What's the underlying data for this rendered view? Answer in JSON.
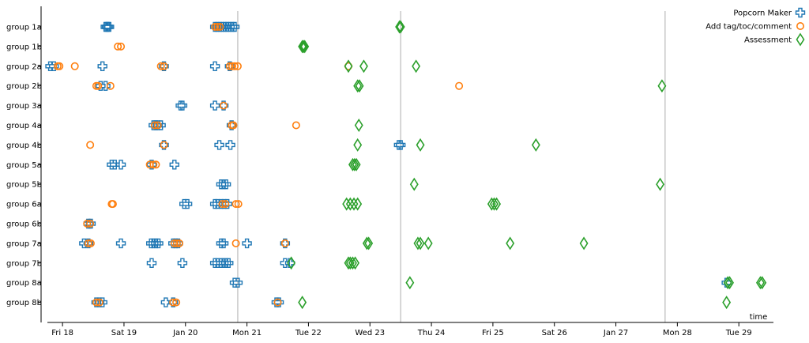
{
  "chart_data": {
    "type": "scatter",
    "xlabel": "time",
    "x_ticks": [
      "Fri 18",
      "Sat 19",
      "Jan 20",
      "Mon 21",
      "Tue 22",
      "Wed 23",
      "Thu 24",
      "Fri 25",
      "Sat 26",
      "Jan 27",
      "Mon 28",
      "Tue 29"
    ],
    "xlim": [
      17.78,
      29.55
    ],
    "reference_lines": [
      20.85,
      23.5,
      27.8
    ],
    "legend_position": "top-right",
    "categories": [
      "group 1a",
      "group 1b",
      "group 2a",
      "group 2b",
      "group 3a",
      "group 4a",
      "group 4b",
      "group 5a",
      "group 5b",
      "group 6a",
      "group 6b",
      "group 7a",
      "group 7b",
      "group 8a",
      "group 8b"
    ],
    "colors": {
      "popcorn": "#1f77b4",
      "comment": "#ff7f0e",
      "assessment": "#2ca02c"
    },
    "series": [
      {
        "name": "Popcorn Maker",
        "marker": "cross-icon",
        "points": {
          "group 1a": [
            18.7,
            18.72,
            18.74,
            18.76,
            20.48,
            20.52,
            20.56,
            20.6,
            20.64,
            20.68,
            20.72,
            20.76,
            20.8
          ],
          "group 2a": [
            17.8,
            17.86,
            18.65,
            19.65,
            20.48,
            20.72
          ],
          "group 2b": [
            18.62,
            18.7
          ],
          "group 3a": [
            19.92,
            19.95,
            20.48,
            20.62
          ],
          "group 4a": [
            19.48,
            19.52,
            19.55,
            19.6,
            20.75
          ],
          "group 4b": [
            19.65,
            20.55,
            20.73,
            23.47,
            23.5
          ],
          "group 5a": [
            18.8,
            18.85,
            18.95,
            19.45,
            19.82
          ],
          "group 5b": [
            20.58,
            20.62,
            20.66
          ],
          "group 6a": [
            19.98,
            20.03,
            20.48,
            20.52,
            20.58,
            20.63,
            20.68
          ],
          "group 6b": [
            18.42,
            18.46
          ],
          "group 7a": [
            18.35,
            18.42,
            18.95,
            19.44,
            19.48,
            19.52,
            19.56,
            19.8,
            19.84,
            19.88,
            20.58,
            20.62,
            21.0,
            21.62
          ],
          "group 7b": [
            19.45,
            19.95,
            20.48,
            20.52,
            20.58,
            20.62,
            20.66,
            20.7,
            21.62,
            21.7
          ],
          "group 8a": [
            20.8,
            20.85,
            28.8
          ],
          "group 8b": [
            18.55,
            18.6,
            18.65,
            19.68,
            19.8,
            21.48,
            21.52
          ]
        }
      },
      {
        "name": "Add tag/toc/comment",
        "marker": "circle-icon",
        "points": {
          "group 1a": [
            20.48,
            20.52,
            20.56
          ],
          "group 1b": [
            18.9,
            18.95
          ],
          "group 2a": [
            17.92,
            17.95,
            18.2,
            19.6,
            19.65,
            20.72,
            20.76,
            20.8,
            20.85,
            22.65
          ],
          "group 2b": [
            18.55,
            18.58,
            18.78,
            24.45
          ],
          "group 3a": [
            20.62
          ],
          "group 4a": [
            19.5,
            19.55,
            20.75,
            20.78,
            21.8
          ],
          "group 4b": [
            18.45,
            19.65
          ],
          "group 5a": [
            19.42,
            19.48,
            19.52
          ],
          "group 6a": [
            18.8,
            18.82,
            20.6,
            20.65,
            20.82,
            20.86
          ],
          "group 6b": [
            18.4,
            18.45
          ],
          "group 7a": [
            18.42,
            18.46,
            19.82,
            19.86,
            19.9,
            20.82,
            21.62
          ],
          "group 8b": [
            18.55,
            18.6,
            19.8,
            19.85,
            21.5
          ]
        }
      },
      {
        "name": "Assessment",
        "marker": "diamond-icon",
        "points": {
          "group 1a": [
            23.48,
            23.5
          ],
          "group 1b": [
            21.9,
            21.92,
            21.94
          ],
          "group 2a": [
            22.65,
            22.9,
            23.75
          ],
          "group 2b": [
            22.8,
            22.83,
            27.75
          ],
          "group 4a": [
            22.82
          ],
          "group 4b": [
            22.8,
            23.82,
            25.7
          ],
          "group 5a": [
            22.72,
            22.75,
            22.78
          ],
          "group 5b": [
            23.72,
            27.72
          ],
          "group 6a": [
            22.62,
            22.68,
            22.74,
            22.8,
            24.98,
            25.02,
            25.06
          ],
          "group 7a": [
            22.95,
            22.98,
            23.78,
            23.82,
            23.95,
            25.28,
            26.48
          ],
          "group 7b": [
            22.65,
            22.68,
            22.72,
            22.76,
            21.72
          ],
          "group 8a": [
            23.65,
            28.82,
            28.85,
            29.35,
            29.38
          ],
          "group 8b": [
            21.9,
            28.8
          ]
        }
      }
    ]
  }
}
